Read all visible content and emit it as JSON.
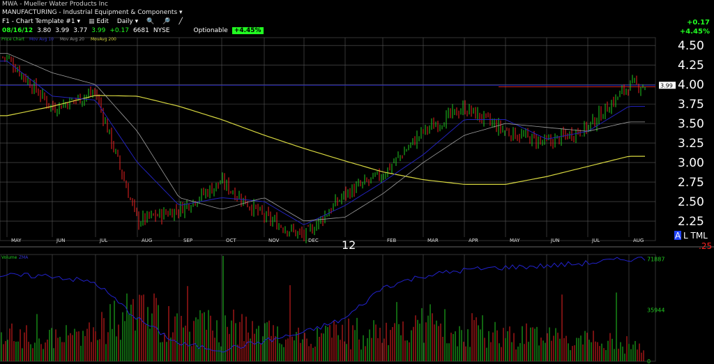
{
  "header": {
    "title": "MWA - Mueller Water Products Inc",
    "sector": "MANUFACTURING - Industrial Equipment & Components",
    "template": "F1 - Chart Template #1",
    "edit_label": "Edit",
    "period_label": "Daily",
    "quote": {
      "date": "08/16/12",
      "open": "3.80",
      "high": "3.99",
      "low": "3.77",
      "close": "3.99",
      "change": "+0.17",
      "volume": "6681",
      "exchange": "NYSE"
    },
    "optionable_label": "Optionable",
    "pct_badge": "+4.45%",
    "right_change": "+0.17",
    "right_pct": "+4.45%"
  },
  "icons": {
    "dropdown": "chevron-down-icon",
    "toolbar": "toolbar-icon",
    "zoom_in": "zoom-in-icon",
    "zoom_out": "zoom-out-icon",
    "draw": "draw-line-icon"
  },
  "legend": {
    "price": "Price Chart",
    "ma1": "Mov Avg 10",
    "ma2": "Mov Avg 20",
    "ma3": "MovAvg 200",
    "volume": "Volume",
    "volume_ma": "ZMA"
  },
  "year_label": "12",
  "a_tml_label": "A",
  "tml_label": "L TML",
  "tml_value": ".25",
  "price_tag": "3.99",
  "colors": {
    "up": "#22cc22",
    "down": "#ee2222",
    "ma_short": "#a0a0a0",
    "ma_mid": "#2222bb",
    "ma_long": "#d8d840",
    "resistance": "#cc2222",
    "grid": "#5a5a5a"
  },
  "chart_data": [
    {
      "type": "line",
      "title": "Price Chart",
      "x": [
        "May-11",
        "Jun-11",
        "Jul-11",
        "Aug-11",
        "Sep-11",
        "Oct-11",
        "Nov-11",
        "Dec-11",
        "Jan-12",
        "Feb-12",
        "Mar-12",
        "Apr-12",
        "May-12",
        "Jun-12",
        "Jul-12",
        "Aug-12"
      ],
      "x_labels": [
        "MAY",
        "JUN",
        "JUL",
        "AUG",
        "SEP",
        "OCT",
        "NOV",
        "DEC",
        "",
        "FEB",
        "MAR",
        "APR",
        "MAY",
        "JUN",
        "JUL",
        "AUG"
      ],
      "y_ticks": [
        "2.25",
        "2.50",
        "2.75",
        "3.00",
        "3.25",
        "3.50",
        "3.75",
        "4.00",
        "4.25",
        "4.50"
      ],
      "ylim": [
        2.0,
        4.6
      ],
      "series": [
        {
          "name": "Price Chart",
          "values": [
            4.35,
            3.7,
            3.9,
            2.25,
            2.4,
            2.75,
            2.3,
            2.05,
            2.6,
            2.85,
            3.4,
            3.7,
            3.4,
            3.25,
            3.45,
            3.99
          ]
        },
        {
          "name": "Mov Avg 20",
          "values": [
            4.3,
            3.85,
            3.8,
            3.0,
            2.45,
            2.55,
            2.5,
            2.2,
            2.45,
            2.75,
            3.1,
            3.55,
            3.55,
            3.3,
            3.4,
            3.72
          ]
        },
        {
          "name": "Mov Avg 10",
          "values": [
            4.4,
            4.15,
            4.0,
            3.4,
            2.55,
            2.4,
            2.55,
            2.25,
            2.3,
            2.6,
            3.0,
            3.35,
            3.5,
            3.45,
            3.4,
            3.52
          ]
        },
        {
          "name": "MovAvg 200",
          "values": [
            3.6,
            3.72,
            3.86,
            3.85,
            3.72,
            3.55,
            3.35,
            3.18,
            3.02,
            2.88,
            2.78,
            2.72,
            2.72,
            2.82,
            2.95,
            3.08
          ]
        }
      ],
      "reference_lines": [
        {
          "value": 3.99,
          "color": "#2222bb"
        },
        {
          "value": 3.97,
          "color": "#cc2222"
        }
      ]
    },
    {
      "type": "bar",
      "title": "Volume",
      "y_ticks": [
        "0",
        "35944",
        "71887"
      ],
      "ylim": [
        0,
        75000
      ],
      "x": [
        "May-11",
        "Jun-11",
        "Jul-11",
        "Aug-11",
        "Sep-11",
        "Oct-11",
        "Nov-11",
        "Dec-11",
        "Jan-12",
        "Feb-12",
        "Mar-12",
        "Apr-12",
        "May-12",
        "Jun-12",
        "Jul-12",
        "Aug-12"
      ],
      "series": [
        {
          "name": "Volume",
          "values": [
            18000,
            16000,
            22000,
            38000,
            24000,
            26000,
            20000,
            17000,
            21000,
            19000,
            28000,
            23000,
            21000,
            17000,
            15000,
            12000
          ]
        },
        {
          "name": "ZMA",
          "values": [
            60000,
            60000,
            55000,
            30000,
            12000,
            8000,
            14000,
            20000,
            30000,
            52000,
            60000,
            64000,
            66000,
            67000,
            69000,
            71887
          ]
        }
      ]
    }
  ]
}
